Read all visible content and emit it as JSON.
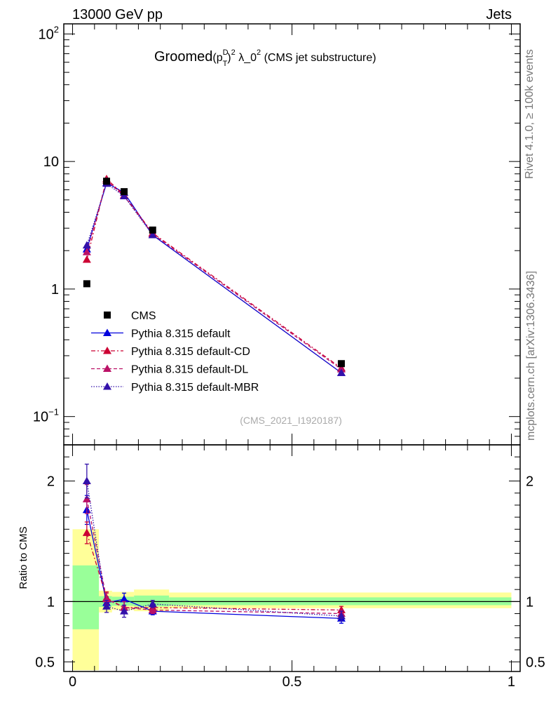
{
  "header": {
    "energy_label": "13000 GeV pp",
    "process_label": "Jets"
  },
  "side_labels": {
    "rivet": "Rivet 4.1.0, ≥ 100k events",
    "mcplots": "mcplots.cern.ch [arXiv:1306.3436]"
  },
  "watermark": "(CMS_2021_I1920187)",
  "chart_data": [
    {
      "type": "scatter",
      "role": "main",
      "title": {
        "prefix": "Groomed",
        "var_p": "(p",
        "var_sup": "D",
        "var_sub": "T",
        "var_close": ")",
        "var_sq": "2",
        "lambda": " λ_0",
        "lambda_sq": "2",
        "suffix": " (CMS jet substructure)"
      },
      "yscale": "log",
      "ylim": [
        0.06,
        120
      ],
      "xlim": [
        -0.02,
        1.02
      ],
      "yticks": [
        {
          "base": "10",
          "exp": "2",
          "value": 100
        },
        {
          "base": "10",
          "exp": "",
          "value": 10
        },
        {
          "base": "1",
          "exp": "",
          "value": 1
        },
        {
          "base": "10",
          "exp": "−1",
          "value": 0.1
        }
      ],
      "x": [
        0.0325,
        0.0775,
        0.1175,
        0.1825,
        0.6125
      ],
      "data": {
        "name": "CMS",
        "values": [
          1.1,
          7.0,
          5.8,
          2.9,
          0.26
        ]
      },
      "series": [
        {
          "name": "Pythia 8.315 default",
          "color": "#0000dd",
          "dash": "",
          "values": [
            2.05,
            6.8,
            5.7,
            2.65,
            0.22
          ]
        },
        {
          "name": "Pythia 8.315 default-CD",
          "color": "#cc0033",
          "dash": "6,3,2,3",
          "values": [
            1.7,
            7.3,
            5.45,
            2.75,
            0.24
          ]
        },
        {
          "name": "Pythia 8.315 default-DL",
          "color": "#bb1166",
          "dash": "5,3",
          "values": [
            1.95,
            7.1,
            5.35,
            2.7,
            0.235
          ]
        },
        {
          "name": "Pythia 8.315 default-MBR",
          "color": "#3311aa",
          "dash": "1.5,2",
          "values": [
            2.2,
            6.7,
            5.35,
            2.65,
            0.22
          ]
        }
      ],
      "legend_position": "center-left"
    },
    {
      "type": "scatter",
      "role": "ratio",
      "ylabel": "Ratio to CMS",
      "ylim": [
        0.42,
        2.3
      ],
      "xlim": [
        -0.02,
        1.02
      ],
      "yticks": [
        {
          "label": "2",
          "value": 2
        },
        {
          "label": "1",
          "value": 1
        },
        {
          "label": "0.5",
          "value": 0.5
        }
      ],
      "xticks": [
        {
          "label": "0",
          "value": 0
        },
        {
          "label": "0.5",
          "value": 0.5
        },
        {
          "label": "1",
          "value": 1
        }
      ],
      "bins": [
        {
          "x0": 0.0,
          "x1": 0.06,
          "yellow": [
            0.43,
            1.6
          ],
          "green": [
            0.77,
            1.3
          ]
        },
        {
          "x0": 0.06,
          "x1": 0.09,
          "yellow": [
            0.91,
            1.09
          ],
          "green": [
            0.955,
            1.045
          ]
        },
        {
          "x0": 0.09,
          "x1": 0.14,
          "yellow": [
            0.93,
            1.08
          ],
          "green": [
            0.965,
            1.04
          ]
        },
        {
          "x0": 0.14,
          "x1": 0.22,
          "yellow": [
            0.92,
            1.1
          ],
          "green": [
            0.96,
            1.05
          ]
        },
        {
          "x0": 0.22,
          "x1": 1.0,
          "yellow": [
            0.945,
            1.075
          ],
          "green": [
            0.97,
            1.035
          ]
        }
      ],
      "ratios": [
        {
          "name": "Pythia 8.315 default",
          "values": [
            1.76,
            0.99,
            1.02,
            0.92,
            0.86
          ],
          "errors": [
            0.12,
            0.05,
            0.05,
            0.03,
            0.04
          ]
        },
        {
          "name": "Pythia 8.315 default-CD",
          "values": [
            1.57,
            1.03,
            0.95,
            0.95,
            0.93
          ],
          "errors": [
            0.09,
            0.05,
            0.05,
            0.03,
            0.03
          ]
        },
        {
          "name": "Pythia 8.315 default-DL",
          "values": [
            1.85,
            1.02,
            0.95,
            0.93,
            0.9
          ],
          "errors": [
            0.12,
            0.05,
            0.05,
            0.03,
            0.03
          ]
        },
        {
          "name": "Pythia 8.315 default-MBR",
          "values": [
            2.0,
            0.96,
            0.92,
            0.98,
            0.88
          ],
          "errors": [
            0.14,
            0.05,
            0.05,
            0.03,
            0.04
          ]
        }
      ]
    }
  ]
}
